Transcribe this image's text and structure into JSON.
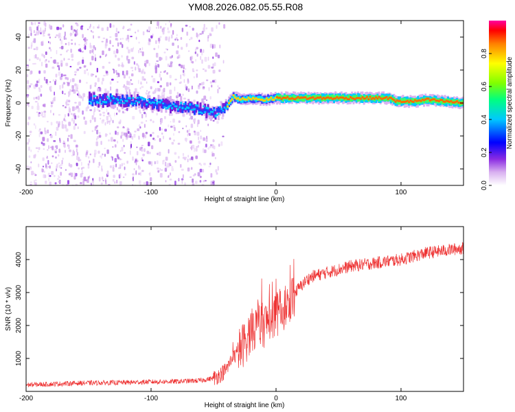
{
  "title": "YM08.2026.082.05.55.R08",
  "chart_data": [
    {
      "type": "heatmap",
      "xlabel": "Height of straight line (km)",
      "ylabel": "Frequency (Hz)",
      "xlim": [
        -200,
        150
      ],
      "ylim": [
        -50,
        50
      ],
      "xticks": [
        -200,
        -100,
        0,
        100
      ],
      "yticks": [
        -40,
        -20,
        0,
        20,
        40
      ],
      "ridge": {
        "x": [
          -150,
          -130,
          -110,
          -90,
          -70,
          -60,
          -50,
          -45,
          -40,
          -35,
          -30,
          -20,
          -10,
          0,
          10,
          30,
          60,
          90,
          95,
          100,
          110,
          120,
          150
        ],
        "freq": [
          2,
          2,
          1,
          -1,
          -3,
          -4,
          -6,
          -4,
          -2,
          4,
          2,
          3,
          2,
          3,
          3,
          3,
          3,
          3,
          1,
          1,
          1,
          2,
          0
        ]
      },
      "colorbar": {
        "label": "Normalized spectral amplitude",
        "range": [
          0,
          1
        ],
        "ticks": [
          0.0,
          0.2,
          0.4,
          0.6,
          0.8
        ],
        "tick_labels": [
          "0.0",
          "0.2",
          "0.4",
          "0.6",
          "0.8"
        ]
      }
    },
    {
      "type": "line",
      "xlabel": "Height of straight line (km)",
      "ylabel": "SNR (10 * v/v)",
      "xlim": [
        -200,
        150
      ],
      "ylim": [
        0,
        5000
      ],
      "xticks": [
        -200,
        -100,
        0,
        100
      ],
      "yticks": [
        1000,
        2000,
        3000,
        4000
      ],
      "color": "#ee3333",
      "series": [
        {
          "name": "SNR",
          "x": [
            -200,
            -180,
            -160,
            -140,
            -120,
            -100,
            -80,
            -60,
            -50,
            -45,
            -40,
            -35,
            -30,
            -25,
            -20,
            -15,
            -10,
            -5,
            0,
            5,
            10,
            15,
            20,
            25,
            30,
            40,
            50,
            60,
            70,
            80,
            90,
            100,
            110,
            120,
            130,
            140,
            150
          ],
          "y": [
            200,
            220,
            250,
            260,
            270,
            290,
            300,
            330,
            400,
            500,
            650,
            1000,
            1200,
            1500,
            1800,
            2000,
            2000,
            2200,
            2300,
            2500,
            2700,
            3000,
            3200,
            3400,
            3500,
            3600,
            3700,
            3800,
            3850,
            3900,
            3950,
            4000,
            4100,
            4200,
            4250,
            4300,
            4350
          ]
        }
      ]
    }
  ]
}
